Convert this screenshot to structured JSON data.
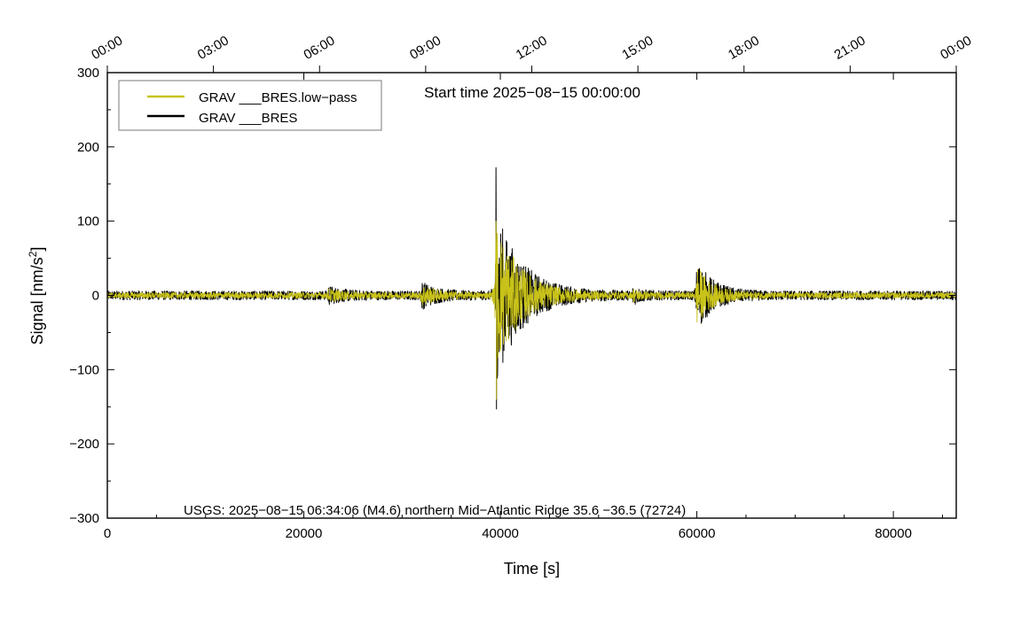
{
  "chart_data": {
    "type": "line",
    "xlabel": "Time [s]",
    "ylabel_main": "Signal [nm/s",
    "ylabel_sup": "2",
    "ylabel_tail": "]",
    "xlim": [
      0,
      86400
    ],
    "ylim": [
      -300,
      300
    ],
    "x_ticks": [
      0,
      20000,
      40000,
      60000,
      80000
    ],
    "x_tick_labels": [
      "0",
      "20000",
      "40000",
      "60000",
      "80000"
    ],
    "y_ticks": [
      -300,
      -200,
      -100,
      0,
      100,
      200,
      300
    ],
    "y_tick_labels": [
      "−300",
      "−200",
      "−100",
      "0",
      "100",
      "200",
      "300"
    ],
    "top_ticks_seconds": [
      0,
      10800,
      21600,
      32400,
      43200,
      54000,
      64800,
      75600,
      86400
    ],
    "top_tick_labels": [
      "00:00",
      "03:00",
      "06:00",
      "09:00",
      "12:00",
      "15:00",
      "18:00",
      "21:00",
      "00:00"
    ],
    "grid": false,
    "legend_position": "top-left",
    "start_time_label": "Start time 2025−08−15 00:00:00",
    "event_annotation": "USGS: 2025−08−15 06:34:06 (M4.6) northern Mid−Atlantic Ridge 35.6 −36.5 (72724)",
    "series": [
      {
        "name": "GRAV ___BRES.low−pass",
        "color": "#c8c21a",
        "noise_amplitude": 4,
        "events": [
          {
            "t": 22500,
            "amp": 6,
            "dur": 1500
          },
          {
            "t": 32000,
            "amp": 12,
            "dur": 1500
          },
          {
            "t": 39600,
            "amp": 95,
            "dur": 2500
          },
          {
            "t": 53500,
            "amp": 6,
            "dur": 800
          },
          {
            "t": 60000,
            "amp": 38,
            "dur": 1500
          }
        ],
        "peak_max": 100,
        "peak_min": -140
      },
      {
        "name": "GRAV ___BRES",
        "color": "#000000",
        "noise_amplitude": 6,
        "events": [
          {
            "t": 22500,
            "amp": 8,
            "dur": 1500
          },
          {
            "t": 32000,
            "amp": 14,
            "dur": 1500
          },
          {
            "t": 39600,
            "amp": 110,
            "dur": 2600
          },
          {
            "t": 53500,
            "amp": 8,
            "dur": 800
          },
          {
            "t": 60000,
            "amp": 45,
            "dur": 1600
          }
        ],
        "peak_max": 172,
        "peak_min": -153
      }
    ]
  }
}
